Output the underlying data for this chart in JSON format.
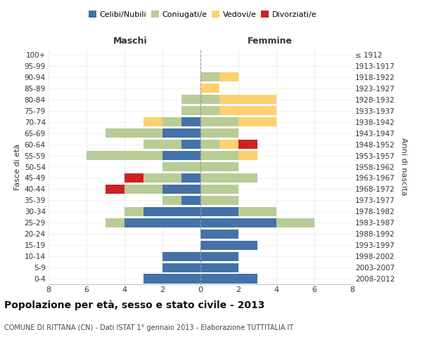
{
  "age_groups": [
    "0-4",
    "5-9",
    "10-14",
    "15-19",
    "20-24",
    "25-29",
    "30-34",
    "35-39",
    "40-44",
    "45-49",
    "50-54",
    "55-59",
    "60-64",
    "65-69",
    "70-74",
    "75-79",
    "80-84",
    "85-89",
    "90-94",
    "95-99",
    "100+"
  ],
  "birth_years": [
    "2008-2012",
    "2003-2007",
    "1998-2002",
    "1993-1997",
    "1988-1992",
    "1983-1987",
    "1978-1982",
    "1973-1977",
    "1968-1972",
    "1963-1967",
    "1958-1962",
    "1953-1957",
    "1948-1952",
    "1943-1947",
    "1938-1942",
    "1933-1937",
    "1928-1932",
    "1923-1927",
    "1918-1922",
    "1913-1917",
    "≤ 1912"
  ],
  "males": {
    "celibi": [
      3,
      2,
      2,
      0,
      0,
      4,
      3,
      1,
      2,
      1,
      0,
      2,
      1,
      2,
      1,
      0,
      0,
      0,
      0,
      0,
      0
    ],
    "coniugati": [
      0,
      0,
      0,
      0,
      0,
      1,
      1,
      1,
      2,
      2,
      2,
      4,
      2,
      3,
      1,
      1,
      1,
      0,
      0,
      0,
      0
    ],
    "vedovi": [
      0,
      0,
      0,
      0,
      0,
      0,
      0,
      0,
      0,
      0,
      0,
      0,
      0,
      0,
      1,
      0,
      0,
      0,
      0,
      0,
      0
    ],
    "divorziati": [
      0,
      0,
      0,
      0,
      0,
      0,
      0,
      0,
      1,
      1,
      0,
      0,
      0,
      0,
      0,
      0,
      0,
      0,
      0,
      0,
      0
    ]
  },
  "females": {
    "nubili": [
      3,
      2,
      2,
      3,
      2,
      4,
      2,
      0,
      0,
      0,
      0,
      0,
      0,
      0,
      0,
      0,
      0,
      0,
      0,
      0,
      0
    ],
    "coniugate": [
      0,
      0,
      0,
      0,
      0,
      2,
      2,
      2,
      2,
      3,
      2,
      2,
      1,
      2,
      2,
      1,
      1,
      0,
      1,
      0,
      0
    ],
    "vedove": [
      0,
      0,
      0,
      0,
      0,
      0,
      0,
      0,
      0,
      0,
      0,
      1,
      1,
      0,
      2,
      3,
      3,
      1,
      1,
      0,
      0
    ],
    "divorziate": [
      0,
      0,
      0,
      0,
      0,
      0,
      0,
      0,
      0,
      0,
      0,
      0,
      1,
      0,
      0,
      0,
      0,
      0,
      0,
      0,
      0
    ]
  },
  "colors": {
    "celibi_nubili": "#4472a8",
    "coniugati": "#b8cc96",
    "vedovi": "#ffd070",
    "divorziati": "#cc2222"
  },
  "xlim": 8,
  "title": "Popolazione per età, sesso e stato civile - 2013",
  "subtitle": "COMUNE DI RITTANA (CN) - Dati ISTAT 1° gennaio 2013 - Elaborazione TUTTITALIA.IT",
  "ylabel_left": "Fasce di età",
  "ylabel_right": "Anni di nascita",
  "label_maschi": "Maschi",
  "label_femmine": "Femmine"
}
